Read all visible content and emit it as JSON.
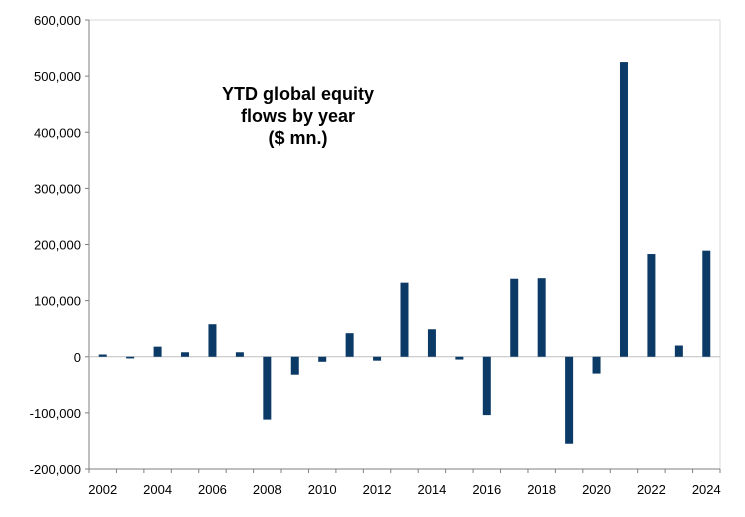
{
  "chart_data": {
    "type": "bar",
    "title_lines": [
      "YTD global equity",
      "flows by year",
      "($ mn.)"
    ],
    "xlabel": "",
    "ylabel": "",
    "ylim": [
      -200000,
      600000
    ],
    "y_ticks": [
      600000,
      500000,
      400000,
      300000,
      200000,
      100000,
      0,
      -100000,
      -200000
    ],
    "y_tick_labels": [
      "600,000",
      "500,000",
      "400,000",
      "300,000",
      "200,000",
      "100,000",
      "0",
      "-100,000",
      "-200,000"
    ],
    "x_tick_labels": [
      "2002",
      "2004",
      "2006",
      "2008",
      "2010",
      "2012",
      "2014",
      "2016",
      "2018",
      "2020",
      "2022",
      "2024"
    ],
    "categories": [
      "2002",
      "2003",
      "2004",
      "2005",
      "2006",
      "2007",
      "2008",
      "2009",
      "2010",
      "2011",
      "2012",
      "2013",
      "2014",
      "2015",
      "2016",
      "2017",
      "2018",
      "2019",
      "2020",
      "2021",
      "2022",
      "2023",
      "2024"
    ],
    "values": [
      4000,
      -3000,
      18000,
      8000,
      58000,
      8000,
      -112000,
      -32000,
      -9000,
      42000,
      -7000,
      132000,
      49000,
      -5000,
      -104000,
      139000,
      140000,
      -155000,
      -30000,
      525000,
      183000,
      20000,
      189000
    ],
    "grid": false,
    "legend": "none",
    "bar_color": "#0b3a67"
  }
}
